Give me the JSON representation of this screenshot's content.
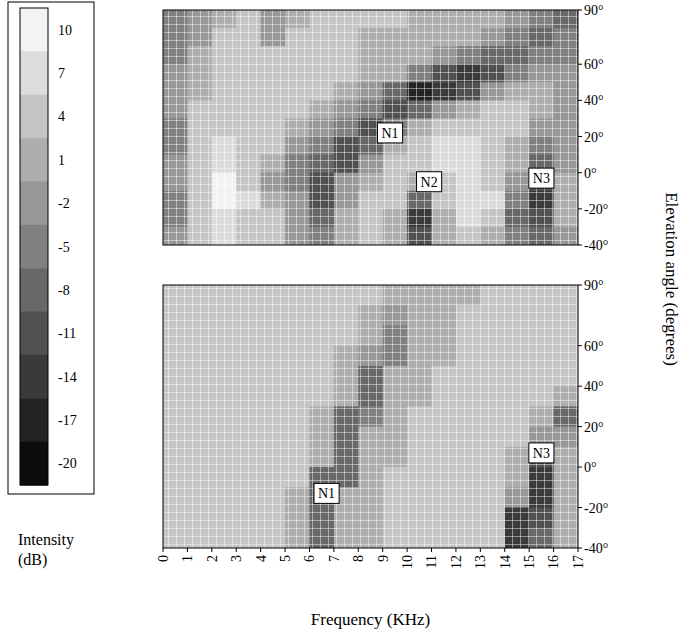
{
  "chart_data": [
    {
      "type": "heatmap",
      "y_label": "Elevation angle (degrees)",
      "tick_labels": "y",
      "grid": false,
      "xlim": [
        0,
        17
      ],
      "ylim": [
        -40,
        90
      ],
      "yticks": [
        {
          "value": 90,
          "label": "90°"
        },
        {
          "value": 60,
          "label": "60°"
        },
        {
          "value": 40,
          "label": "40°"
        },
        {
          "value": 20,
          "label": "20°"
        },
        {
          "value": 0,
          "label": "0°"
        },
        {
          "value": -20,
          "label": "-20°"
        },
        {
          "value": -40,
          "label": "-40°"
        }
      ],
      "x": [
        0.5,
        1.5,
        2.5,
        3.5,
        4.5,
        5.5,
        6.5,
        7.5,
        8.5,
        9.5,
        10.5,
        11.5,
        12.5,
        13.5,
        14.5,
        15.5,
        16.5
      ],
      "y": [
        85,
        75,
        65,
        55,
        45,
        35,
        25,
        15,
        5,
        -5,
        -15,
        -25,
        -35
      ],
      "cells": [
        [
          -5,
          -2,
          1,
          4,
          -2,
          1,
          4,
          4,
          4,
          4,
          1,
          1,
          1,
          1,
          -2,
          -5,
          -8
        ],
        [
          -5,
          -2,
          4,
          4,
          -2,
          4,
          4,
          4,
          1,
          1,
          1,
          1,
          1,
          -2,
          -5,
          -8,
          -5
        ],
        [
          -5,
          1,
          4,
          4,
          4,
          4,
          4,
          4,
          1,
          1,
          1,
          -2,
          -5,
          -8,
          -8,
          -5,
          -5
        ],
        [
          -2,
          1,
          4,
          4,
          4,
          4,
          4,
          4,
          1,
          1,
          -5,
          -11,
          -14,
          -11,
          -5,
          -2,
          -2
        ],
        [
          -2,
          1,
          4,
          4,
          4,
          4,
          4,
          1,
          -2,
          -8,
          -17,
          -14,
          -11,
          -2,
          1,
          1,
          -2
        ],
        [
          -2,
          4,
          4,
          4,
          4,
          4,
          1,
          -2,
          -5,
          -11,
          -8,
          -2,
          1,
          4,
          4,
          1,
          -2
        ],
        [
          -5,
          4,
          4,
          4,
          4,
          1,
          -2,
          -5,
          -11,
          -5,
          1,
          4,
          4,
          4,
          4,
          -2,
          -2
        ],
        [
          -5,
          4,
          7,
          4,
          4,
          -2,
          -5,
          -11,
          -8,
          1,
          4,
          7,
          7,
          4,
          1,
          -5,
          -2
        ],
        [
          -2,
          4,
          7,
          4,
          1,
          -5,
          -8,
          -11,
          -2,
          4,
          4,
          7,
          7,
          4,
          1,
          -8,
          -2
        ],
        [
          -2,
          4,
          10,
          4,
          -2,
          -5,
          -11,
          -2,
          1,
          4,
          1,
          4,
          7,
          4,
          -2,
          -11,
          1
        ],
        [
          -5,
          4,
          10,
          7,
          1,
          -2,
          -11,
          -2,
          4,
          4,
          -8,
          4,
          7,
          7,
          -5,
          -14,
          1
        ],
        [
          -5,
          4,
          7,
          4,
          4,
          -2,
          -8,
          1,
          4,
          1,
          -14,
          1,
          7,
          4,
          -8,
          -11,
          1
        ],
        [
          -2,
          4,
          7,
          4,
          4,
          -2,
          -5,
          1,
          4,
          1,
          -11,
          1,
          4,
          1,
          -5,
          -8,
          -2
        ]
      ],
      "annotations": [
        {
          "text": "N1",
          "x": 9.3,
          "y": 22
        },
        {
          "text": "N2",
          "x": 10.9,
          "y": -5
        },
        {
          "text": "N3",
          "x": 15.5,
          "y": -3
        }
      ],
      "colorbar": {
        "label": "Intensity (dB)",
        "range": [
          -21.5,
          11.5
        ],
        "ticks": [
          10,
          7,
          4,
          1,
          -2,
          -5,
          -8,
          -11,
          -14,
          -17,
          -20
        ]
      }
    },
    {
      "type": "heatmap",
      "x_label": "Frequency (KHz)",
      "tick_labels": true,
      "grid": false,
      "xlim": [
        0,
        17
      ],
      "ylim": [
        -40,
        90
      ],
      "xticks": [
        0,
        1,
        2,
        3,
        4,
        5,
        6,
        7,
        8,
        9,
        10,
        11,
        12,
        13,
        14,
        15,
        16,
        17
      ],
      "yticks": [
        {
          "value": 90,
          "label": "90°"
        },
        {
          "value": 60,
          "label": "60°"
        },
        {
          "value": 40,
          "label": "40°"
        },
        {
          "value": 20,
          "label": "20°"
        },
        {
          "value": 0,
          "label": "0°"
        },
        {
          "value": -20,
          "label": "-20°"
        },
        {
          "value": -40,
          "label": "-40°"
        }
      ],
      "x": [
        0.5,
        1.5,
        2.5,
        3.5,
        4.5,
        5.5,
        6.5,
        7.5,
        8.5,
        9.5,
        10.5,
        11.5,
        12.5,
        13.5,
        14.5,
        15.5,
        16.5
      ],
      "y": [
        85,
        75,
        65,
        55,
        45,
        35,
        25,
        15,
        5,
        -5,
        -15,
        -25,
        -35
      ],
      "cells": [
        [
          4,
          4,
          4,
          4,
          4,
          4,
          4,
          4,
          4,
          1,
          1,
          1,
          1,
          4,
          4,
          4,
          4
        ],
        [
          4,
          4,
          4,
          4,
          4,
          4,
          4,
          4,
          1,
          -2,
          1,
          1,
          4,
          4,
          4,
          4,
          4
        ],
        [
          4,
          4,
          4,
          4,
          4,
          4,
          4,
          4,
          1,
          -5,
          1,
          1,
          4,
          4,
          4,
          4,
          4
        ],
        [
          4,
          4,
          4,
          4,
          4,
          4,
          4,
          1,
          -2,
          -5,
          1,
          1,
          4,
          4,
          4,
          4,
          4
        ],
        [
          4,
          4,
          4,
          4,
          4,
          4,
          4,
          1,
          -8,
          1,
          1,
          4,
          4,
          4,
          4,
          4,
          4
        ],
        [
          4,
          4,
          4,
          4,
          4,
          4,
          4,
          1,
          -8,
          1,
          1,
          4,
          4,
          4,
          4,
          4,
          1
        ],
        [
          4,
          4,
          4,
          4,
          4,
          4,
          1,
          -8,
          -5,
          1,
          4,
          4,
          4,
          4,
          4,
          1,
          -8
        ],
        [
          4,
          4,
          4,
          4,
          4,
          4,
          1,
          -8,
          1,
          1,
          4,
          4,
          4,
          4,
          4,
          -2,
          -2
        ],
        [
          4,
          4,
          4,
          4,
          4,
          4,
          1,
          -8,
          1,
          1,
          4,
          4,
          4,
          4,
          1,
          -11,
          1
        ],
        [
          4,
          4,
          4,
          4,
          4,
          4,
          -8,
          -8,
          1,
          4,
          4,
          4,
          4,
          4,
          1,
          -14,
          1
        ],
        [
          4,
          4,
          4,
          4,
          4,
          1,
          -8,
          1,
          1,
          4,
          4,
          4,
          4,
          4,
          -2,
          -14,
          1
        ],
        [
          4,
          4,
          4,
          4,
          4,
          1,
          -8,
          1,
          1,
          4,
          4,
          4,
          4,
          4,
          -14,
          -11,
          1
        ],
        [
          4,
          4,
          4,
          4,
          4,
          1,
          -8,
          1,
          1,
          4,
          4,
          4,
          4,
          4,
          -14,
          -8,
          1
        ]
      ],
      "annotations": [
        {
          "text": "N1",
          "x": 6.7,
          "y": -13
        },
        {
          "text": "N3",
          "x": 15.5,
          "y": 7
        }
      ]
    }
  ]
}
